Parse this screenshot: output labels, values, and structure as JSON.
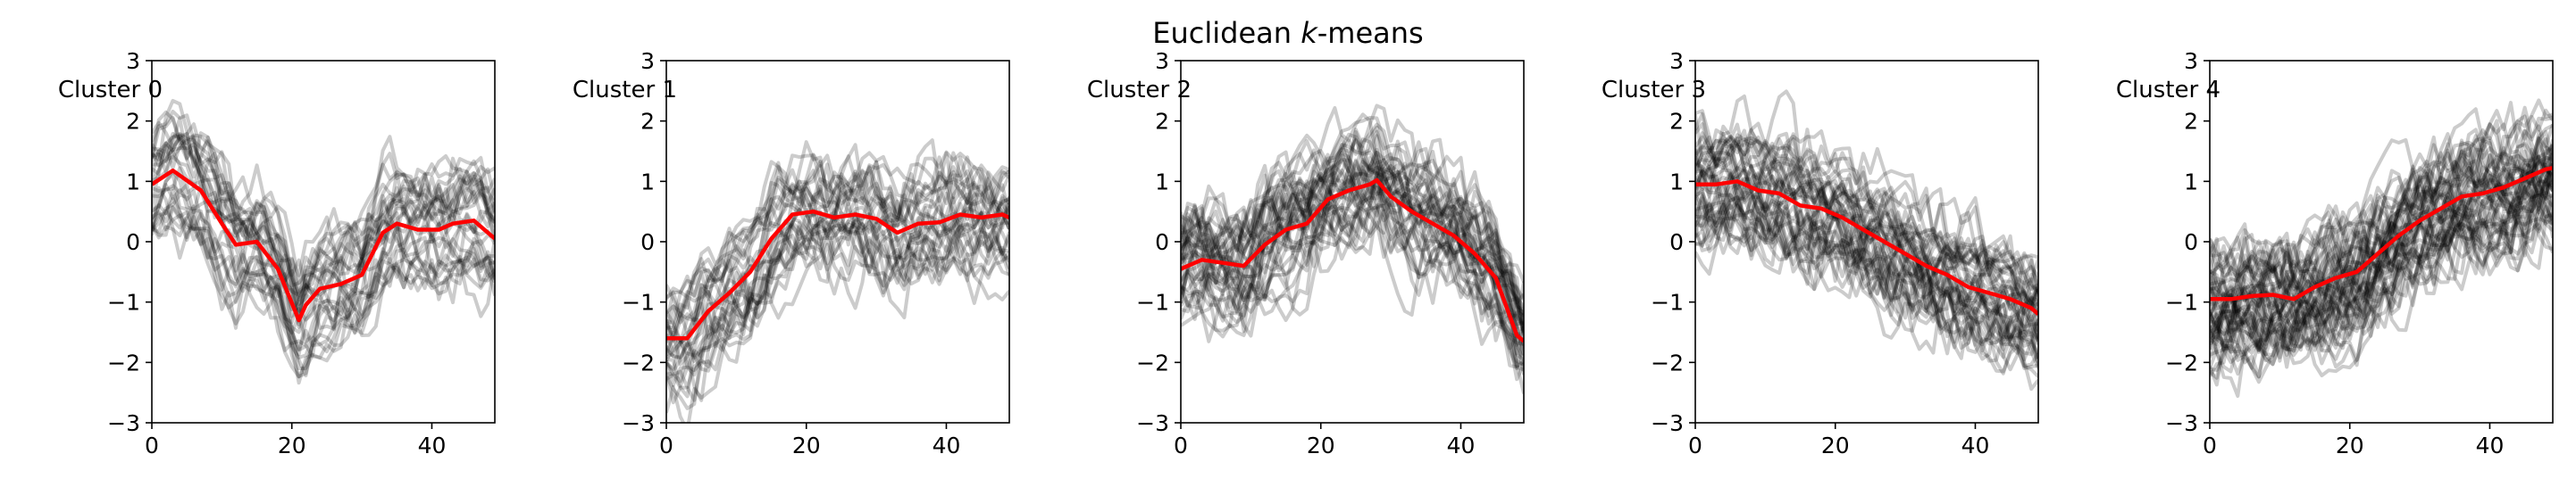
{
  "figure": {
    "title_prefix": "Euclidean ",
    "title_k": "k",
    "title_suffix": "-means"
  },
  "chart_data": {
    "type": "line",
    "title": "Euclidean k-means",
    "xlim": [
      0,
      49
    ],
    "ylim": [
      -3,
      3
    ],
    "xticks": [
      0,
      20,
      40
    ],
    "yticks": [
      -3,
      -2,
      -1,
      0,
      1,
      2,
      3
    ],
    "grid": false,
    "colors": {
      "centroid": "#ff0000",
      "members": "#000000"
    },
    "panels": [
      {
        "title": "Cluster 0",
        "centroid": {
          "x": [
            0,
            3,
            7,
            10,
            12,
            15,
            18,
            21,
            22,
            24,
            27,
            30,
            33,
            35,
            38,
            41,
            43,
            46,
            49
          ],
          "y": [
            0.95,
            1.18,
            0.85,
            0.3,
            -0.05,
            0.0,
            -0.45,
            -1.3,
            -1.05,
            -0.78,
            -0.7,
            -0.55,
            0.15,
            0.3,
            0.2,
            0.2,
            0.3,
            0.35,
            0.05
          ]
        },
        "members_shown": 30
      },
      {
        "title": "Cluster 1",
        "centroid": {
          "x": [
            0,
            3,
            6,
            9,
            12,
            15,
            18,
            21,
            24,
            27,
            30,
            33,
            36,
            39,
            42,
            45,
            48,
            49
          ],
          "y": [
            -1.6,
            -1.6,
            -1.15,
            -0.85,
            -0.5,
            0.05,
            0.45,
            0.5,
            0.4,
            0.45,
            0.38,
            0.15,
            0.3,
            0.32,
            0.45,
            0.4,
            0.45,
            0.4
          ]
        },
        "members_shown": 30
      },
      {
        "title": "Cluster 2",
        "centroid": {
          "x": [
            0,
            3,
            6,
            9,
            12,
            15,
            18,
            21,
            24,
            27,
            28,
            30,
            33,
            36,
            39,
            42,
            45,
            48,
            49
          ],
          "y": [
            -0.45,
            -0.3,
            -0.35,
            -0.4,
            -0.05,
            0.2,
            0.3,
            0.7,
            0.85,
            0.95,
            1.02,
            0.75,
            0.5,
            0.3,
            0.1,
            -0.2,
            -0.6,
            -1.55,
            -1.65
          ]
        },
        "members_shown": 40
      },
      {
        "title": "Cluster 3",
        "centroid": {
          "x": [
            0,
            3,
            6,
            9,
            12,
            15,
            18,
            21,
            24,
            27,
            30,
            33,
            36,
            39,
            42,
            45,
            48,
            49
          ],
          "y": [
            0.95,
            0.95,
            1.0,
            0.85,
            0.8,
            0.6,
            0.55,
            0.4,
            0.2,
            0.0,
            -0.2,
            -0.4,
            -0.55,
            -0.75,
            -0.85,
            -0.95,
            -1.1,
            -1.2
          ]
        },
        "members_shown": 45
      },
      {
        "title": "Cluster 4",
        "centroid": {
          "x": [
            0,
            3,
            6,
            9,
            12,
            15,
            18,
            21,
            24,
            27,
            30,
            33,
            36,
            39,
            42,
            45,
            48,
            49
          ],
          "y": [
            -0.95,
            -0.95,
            -0.9,
            -0.88,
            -0.95,
            -0.75,
            -0.6,
            -0.5,
            -0.2,
            0.1,
            0.35,
            0.55,
            0.75,
            0.8,
            0.9,
            1.05,
            1.2,
            1.22
          ]
        },
        "members_shown": 55
      }
    ]
  }
}
